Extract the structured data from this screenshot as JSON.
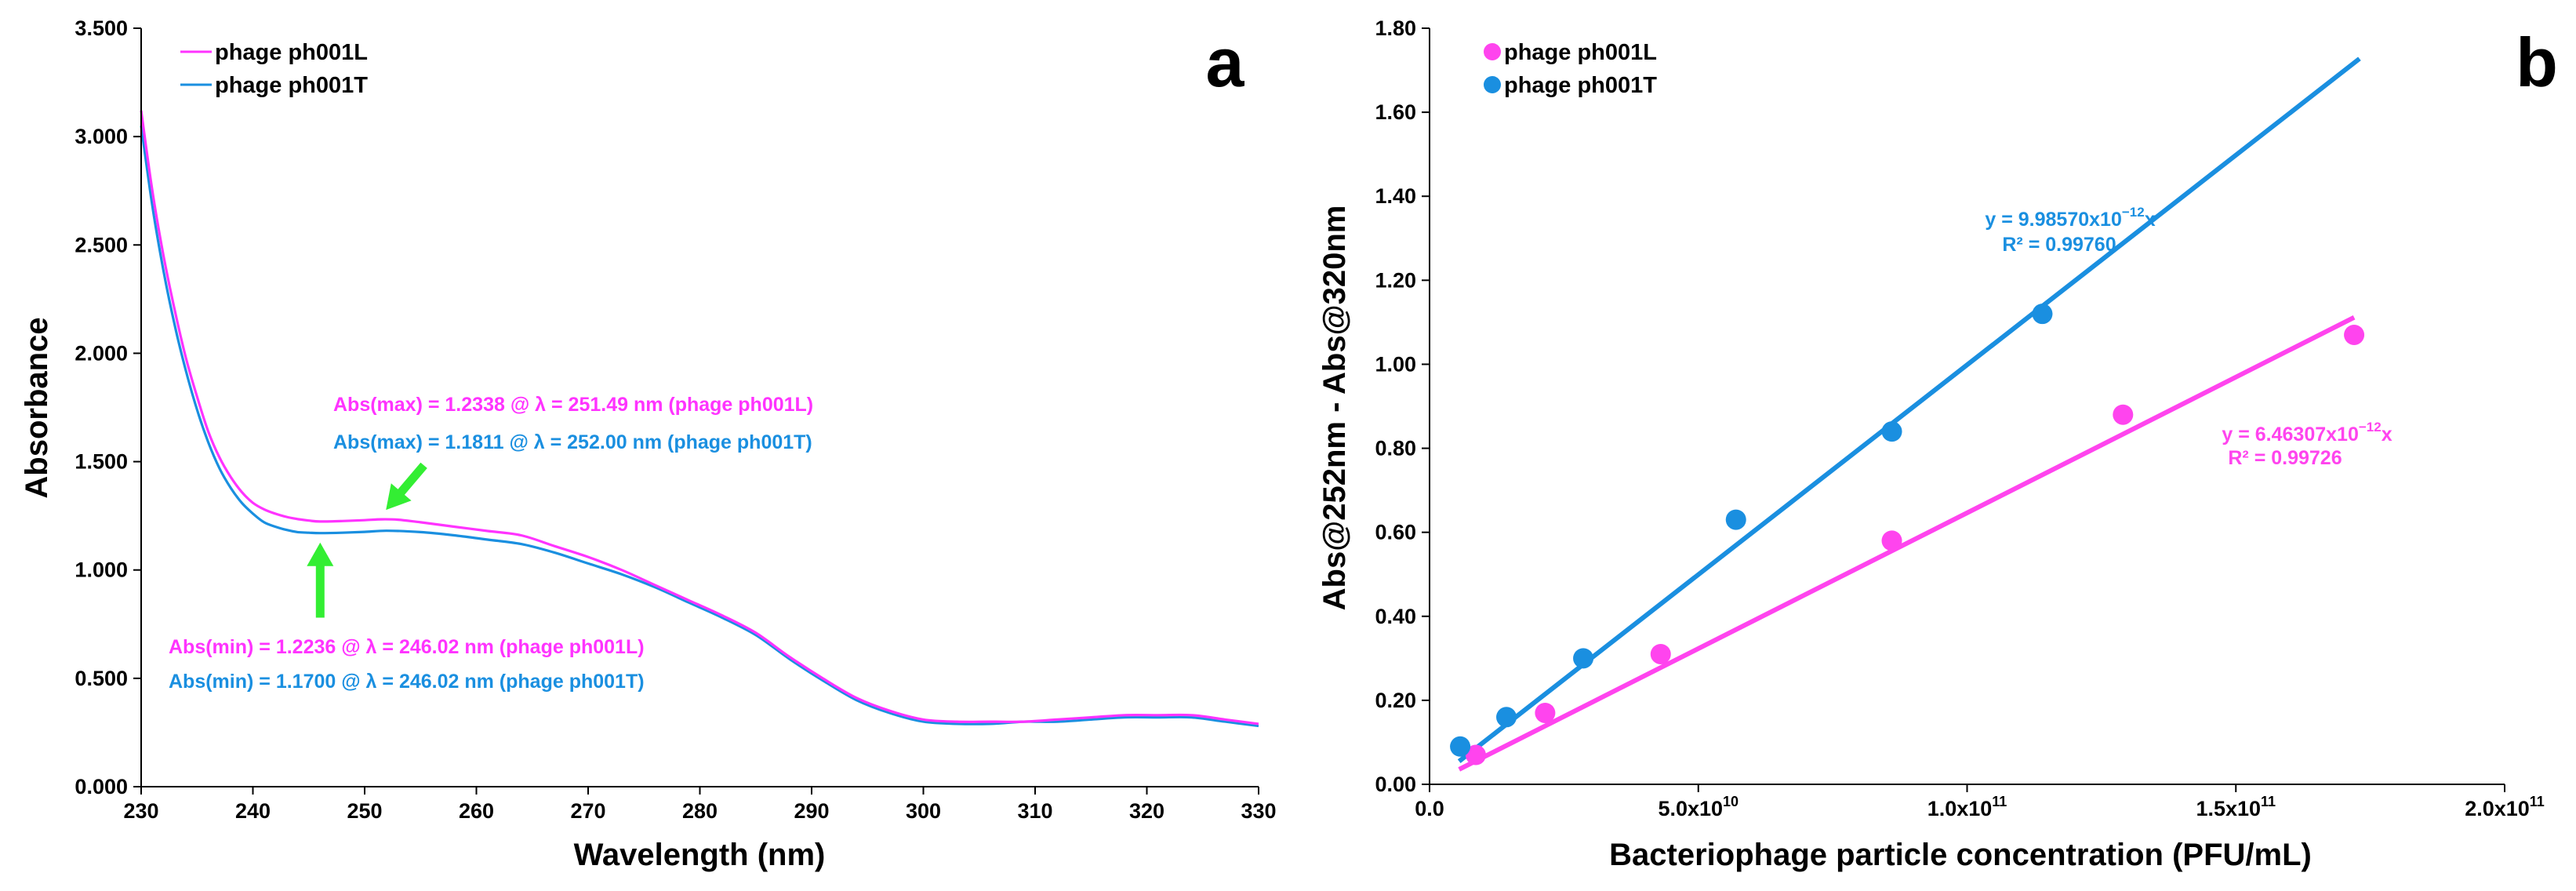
{
  "chart_data": [
    {
      "type": "line",
      "panel": "a",
      "xlabel": "Wavelength (nm)",
      "ylabel": "Absorbance",
      "xlim": [
        230,
        330
      ],
      "ylim": [
        0,
        3.5
      ],
      "xticks": [
        230,
        240,
        250,
        260,
        270,
        280,
        290,
        300,
        310,
        320,
        330
      ],
      "xtick_labels": [
        "230",
        "240",
        "250",
        "260",
        "270",
        "280",
        "290",
        "300",
        "310",
        "320",
        "330"
      ],
      "yticks": [
        0,
        0.5,
        1.0,
        1.5,
        2.0,
        2.5,
        3.0,
        3.5
      ],
      "ytick_labels": [
        "0.000",
        "0.500",
        "1.000",
        "1.500",
        "2.000",
        "2.500",
        "3.000",
        "3.500"
      ],
      "legend_position": "top-left",
      "series": [
        {
          "name": "phage ph001L",
          "color": "#ff33ff",
          "x": [
            230,
            231,
            232,
            233,
            234,
            235,
            236,
            237,
            238,
            239,
            240,
            241,
            242,
            243,
            244,
            245,
            246,
            248,
            250,
            251.5,
            253,
            255,
            258,
            261,
            264,
            267,
            270,
            273,
            276,
            279,
            282,
            285,
            288,
            291,
            294,
            297,
            300,
            303,
            306,
            309,
            312,
            315,
            318,
            321,
            324,
            327,
            330
          ],
          "y": [
            3.12,
            2.75,
            2.45,
            2.2,
            1.98,
            1.8,
            1.64,
            1.52,
            1.43,
            1.36,
            1.31,
            1.28,
            1.26,
            1.245,
            1.235,
            1.228,
            1.2236,
            1.226,
            1.23,
            1.2338,
            1.232,
            1.22,
            1.2,
            1.18,
            1.16,
            1.11,
            1.06,
            1.0,
            0.93,
            0.86,
            0.79,
            0.71,
            0.6,
            0.5,
            0.41,
            0.35,
            0.31,
            0.3,
            0.3,
            0.3,
            0.31,
            0.32,
            0.33,
            0.33,
            0.33,
            0.31,
            0.29
          ]
        },
        {
          "name": "phage ph001T",
          "color": "#1a8fe0",
          "x": [
            230,
            231,
            232,
            233,
            234,
            235,
            236,
            237,
            238,
            239,
            240,
            241,
            242,
            243,
            244,
            245,
            246,
            248,
            250,
            252,
            255,
            258,
            261,
            264,
            267,
            270,
            273,
            276,
            279,
            282,
            285,
            288,
            291,
            294,
            297,
            300,
            303,
            306,
            309,
            312,
            315,
            318,
            321,
            324,
            327,
            330
          ],
          "y": [
            3.05,
            2.68,
            2.38,
            2.13,
            1.92,
            1.74,
            1.59,
            1.47,
            1.38,
            1.31,
            1.26,
            1.22,
            1.2,
            1.185,
            1.175,
            1.172,
            1.17,
            1.172,
            1.176,
            1.1811,
            1.175,
            1.16,
            1.14,
            1.12,
            1.08,
            1.03,
            0.98,
            0.92,
            0.85,
            0.78,
            0.7,
            0.59,
            0.49,
            0.4,
            0.34,
            0.3,
            0.29,
            0.29,
            0.3,
            0.3,
            0.31,
            0.32,
            0.32,
            0.32,
            0.3,
            0.28
          ]
        }
      ],
      "annotations": {
        "max_L": "Abs(max) = 1.2338 @ λ = 251.49 nm (phage ph001L)",
        "max_T": "Abs(max) = 1.1811 @ λ = 252.00 nm (phage ph001T)",
        "min_L": "Abs(min) = 1.2236 @ λ = 246.02 nm (phage ph001L)",
        "min_T": "Abs(min) = 1.1700 @ λ = 246.02 nm (phage ph001T)"
      },
      "annotation_colors": {
        "L": "#ff33ff",
        "T": "#1a8fe0",
        "arrow": "#33ee33"
      },
      "arrows": [
        {
          "from": [
            252.5,
            1.49
          ],
          "to": [
            251.49,
            1.2338
          ],
          "points_to": "max"
        },
        {
          "from": [
            246.02,
            0.78
          ],
          "to": [
            246.02,
            1.17
          ],
          "points_to": "min"
        }
      ]
    },
    {
      "type": "scatter",
      "panel": "b",
      "xlabel": "Bacteriophage particle concentration (PFU/mL)",
      "ylabel": "Abs@252nm - Abs@320nm",
      "xlim": [
        0,
        200000000000.0
      ],
      "ylim": [
        0,
        1.8
      ],
      "xticks": [
        0,
        50000000000.0,
        100000000000.0,
        150000000000.0,
        200000000000.0
      ],
      "xtick_labels": [
        {
          "base": "0.0",
          "exp": ""
        },
        {
          "base": "5.0x10",
          "exp": "10"
        },
        {
          "base": "1.0x10",
          "exp": "11"
        },
        {
          "base": "1.5x10",
          "exp": "11"
        },
        {
          "base": "2.0x10",
          "exp": "11"
        }
      ],
      "yticks": [
        0,
        0.2,
        0.4,
        0.6,
        0.8,
        1.0,
        1.2,
        1.4,
        1.6,
        1.8
      ],
      "ytick_labels": [
        "0.00",
        "0.20",
        "0.40",
        "0.60",
        "0.80",
        "1.00",
        "1.20",
        "1.40",
        "1.60",
        "1.80"
      ],
      "legend_position": "top-left",
      "series": [
        {
          "name": "phage ph001L",
          "color": "#ff44ee",
          "x": [
            8600000000.0,
            21500000000.0,
            43000000000.0,
            86000000000.0,
            129000000000.0,
            172000000000.0
          ],
          "y": [
            0.07,
            0.17,
            0.31,
            0.58,
            0.88,
            1.07
          ],
          "fit": {
            "slope": 6.46307e-12,
            "x_range": [
              5500000000.0,
              172000000000.0
            ],
            "eq_base": "y = 6.46307x10",
            "eq_exp": "−12",
            "eq_var": "x",
            "r2": "R² = 0.99726"
          }
        },
        {
          "name": "phage ph001T",
          "color": "#1a8fe0",
          "x": [
            5700000000.0,
            14300000000.0,
            28600000000.0,
            57000000000.0,
            86000000000.0,
            114000000000.0
          ],
          "y": [
            0.09,
            0.16,
            0.3,
            0.63,
            0.84,
            1.12
          ],
          "fit": {
            "slope": 9.9857e-12,
            "x_range": [
              5500000000.0,
              173000000000.0
            ],
            "eq_base": "y = 9.98570x10",
            "eq_exp": "−12",
            "eq_var": "x",
            "r2": "R² = 0.99760"
          }
        }
      ]
    }
  ]
}
